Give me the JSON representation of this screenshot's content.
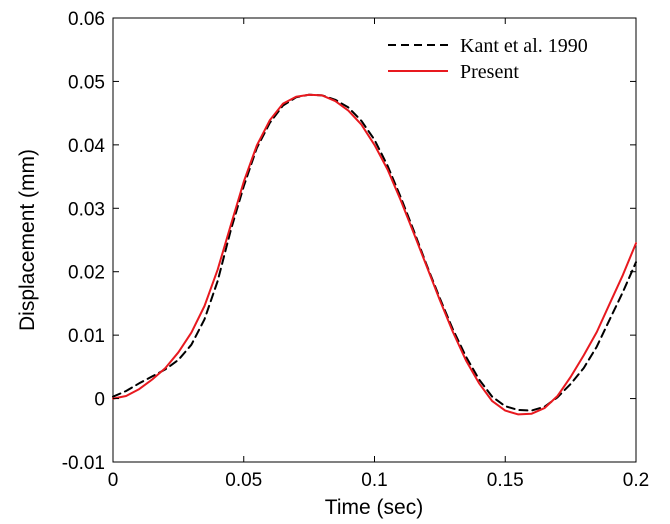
{
  "chart_data": {
    "type": "line",
    "title": "",
    "xlabel": "Time (sec)",
    "ylabel": "Displacement (mm)",
    "xlim": [
      0,
      0.2
    ],
    "ylim": [
      -0.01,
      0.06
    ],
    "xticks": [
      0,
      0.05,
      0.1,
      0.15,
      0.2
    ],
    "xtick_labels": [
      "0",
      "0.05",
      "0.1",
      "0.15",
      "0.2"
    ],
    "yticks": [
      -0.01,
      0,
      0.01,
      0.02,
      0.03,
      0.04,
      0.05,
      0.06
    ],
    "ytick_labels": [
      "-0.01",
      "0",
      "0.01",
      "0.02",
      "0.03",
      "0.04",
      "0.05",
      "0.06"
    ],
    "grid": false,
    "legend_position": "top-right",
    "series": [
      {
        "name": "Kant et al. 1990",
        "color": "#000000",
        "style": "dashed",
        "x": [
          0,
          0.005,
          0.01,
          0.015,
          0.02,
          0.025,
          0.03,
          0.035,
          0.04,
          0.045,
          0.05,
          0.055,
          0.06,
          0.065,
          0.07,
          0.075,
          0.08,
          0.085,
          0.09,
          0.095,
          0.1,
          0.105,
          0.11,
          0.115,
          0.12,
          0.125,
          0.13,
          0.135,
          0.14,
          0.145,
          0.15,
          0.155,
          0.16,
          0.165,
          0.17,
          0.175,
          0.18,
          0.185,
          0.19,
          0.195,
          0.2
        ],
        "y": [
          0.0003,
          0.0012,
          0.0024,
          0.0035,
          0.0046,
          0.0061,
          0.0085,
          0.0125,
          0.0185,
          0.0265,
          0.0335,
          0.0395,
          0.0435,
          0.0462,
          0.0475,
          0.0479,
          0.0478,
          0.0471,
          0.0459,
          0.0438,
          0.0408,
          0.0367,
          0.0318,
          0.0265,
          0.021,
          0.0158,
          0.0109,
          0.0066,
          0.003,
          0.0003,
          -0.0012,
          -0.0018,
          -0.0019,
          -0.0013,
          0.0002,
          0.0023,
          0.0048,
          0.0082,
          0.0125,
          0.0168,
          0.0215
        ]
      },
      {
        "name": "Present",
        "color": "#e8191f",
        "style": "solid",
        "x": [
          0,
          0.005,
          0.01,
          0.015,
          0.02,
          0.025,
          0.03,
          0.035,
          0.04,
          0.045,
          0.05,
          0.055,
          0.06,
          0.065,
          0.07,
          0.075,
          0.08,
          0.085,
          0.09,
          0.095,
          0.1,
          0.105,
          0.11,
          0.115,
          0.12,
          0.125,
          0.13,
          0.135,
          0.14,
          0.145,
          0.15,
          0.155,
          0.16,
          0.165,
          0.17,
          0.175,
          0.18,
          0.185,
          0.19,
          0.195,
          0.2
        ],
        "y": [
          0.0,
          0.0004,
          0.0015,
          0.003,
          0.0048,
          0.0073,
          0.0104,
          0.0146,
          0.0203,
          0.0273,
          0.0342,
          0.0399,
          0.0439,
          0.0465,
          0.0476,
          0.0479,
          0.0478,
          0.0469,
          0.0454,
          0.0432,
          0.04,
          0.0361,
          0.0313,
          0.0261,
          0.0208,
          0.0155,
          0.0105,
          0.006,
          0.0024,
          -0.0004,
          -0.0019,
          -0.0025,
          -0.0024,
          -0.0015,
          0.0004,
          0.0034,
          0.0068,
          0.0105,
          0.015,
          0.0195,
          0.0245
        ]
      }
    ]
  }
}
